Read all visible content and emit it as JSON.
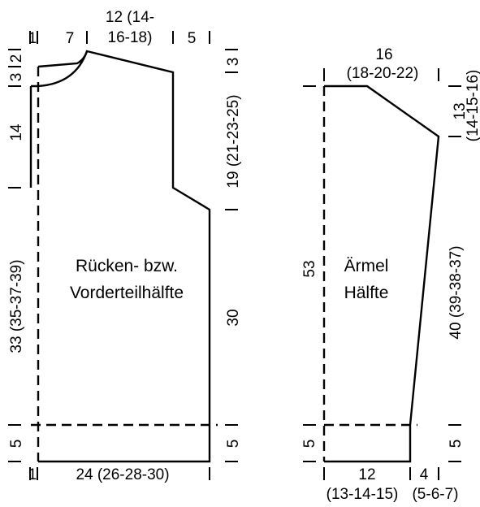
{
  "body_panel": {
    "title_line1": "Rücken- bzw.",
    "title_line2": "Vorderteilhälfte",
    "top": {
      "shoulder_edge": "1",
      "neck_width": "7",
      "neck_label_line1": "12 (14-",
      "neck_label_line2": "16-18)",
      "shoulder_width": "5"
    },
    "left": {
      "neck_top": "2",
      "neck_drop": "3",
      "front_neck": "14",
      "side_length": "33 (35-37-39)",
      "hem": "5"
    },
    "right": {
      "shoulder_slope": "3",
      "armhole": "19 (21-23-25)",
      "side": "30",
      "hem": "5"
    },
    "bottom": {
      "edge": "1",
      "width": "24 (26-28-30)"
    }
  },
  "sleeve_panel": {
    "title_line1": "Ärmel",
    "title_line2": "Hälfte",
    "top_line1": "16",
    "top_line2": "(18-20-22)",
    "right": {
      "cap_line1": "13",
      "cap_line2": "(14-15-16)",
      "length": "40 (39-38-37)",
      "hem": "5"
    },
    "left": {
      "length": "53",
      "hem": "5"
    },
    "bottom": {
      "width_line1": "12",
      "width_line2": "(13-14-15)",
      "cuff_line1": "4",
      "cuff_line2": "(5-6-7)"
    }
  }
}
